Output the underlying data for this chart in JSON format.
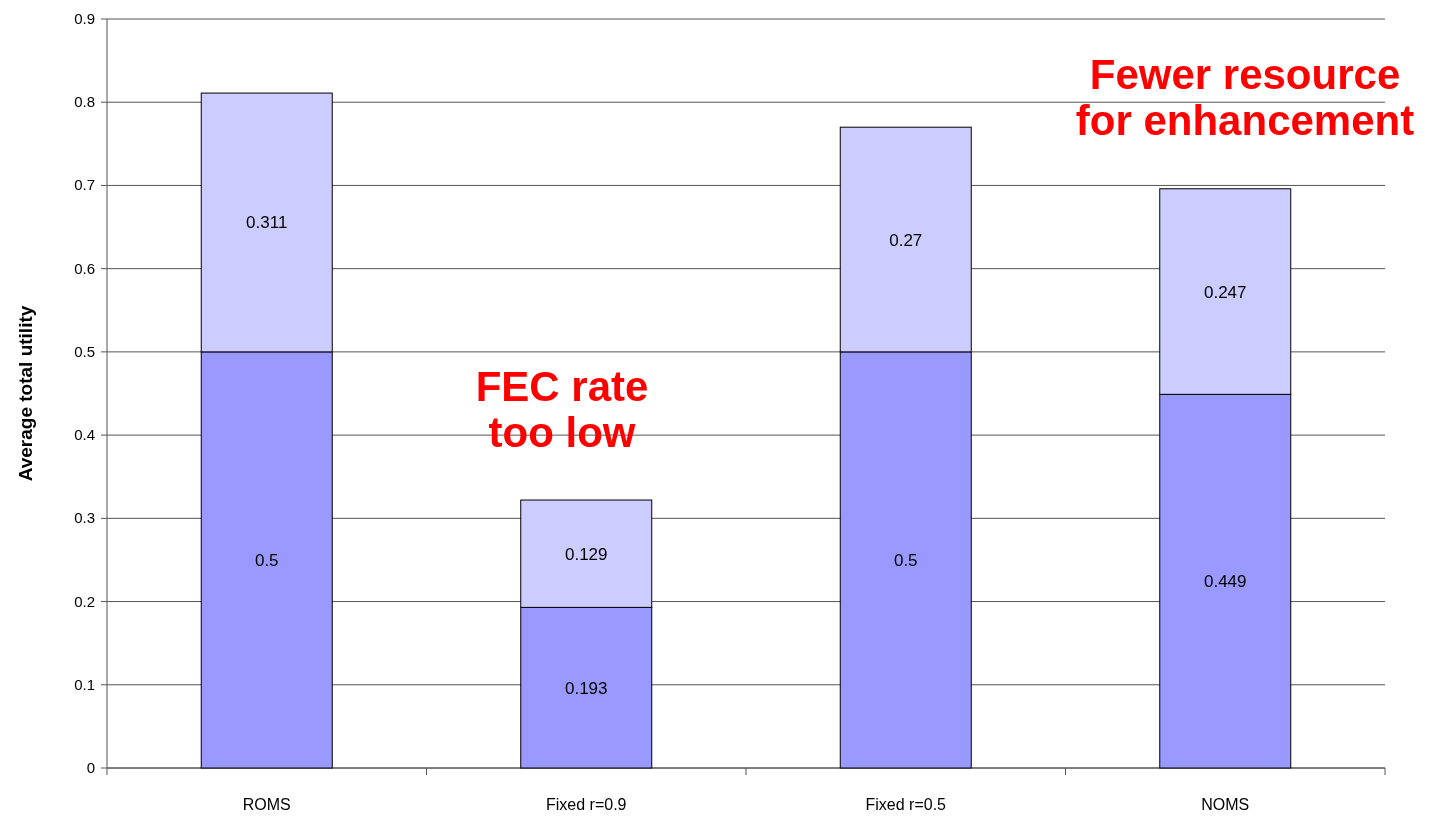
{
  "chart_data": {
    "type": "bar",
    "stacked": true,
    "ylabel": "Average total utility",
    "categories": [
      "ROMS",
      "Fixed r=0.9",
      "Fixed r=0.5",
      "NOMS"
    ],
    "series": [
      {
        "color": "#9999ff",
        "values": [
          0.5,
          0.193,
          0.5,
          0.449
        ]
      },
      {
        "color": "#ccccff",
        "values": [
          0.311,
          0.129,
          0.27,
          0.247
        ]
      }
    ],
    "ylim": [
      0,
      0.9
    ],
    "yticks": [
      0,
      0.1,
      0.2,
      0.3,
      0.4,
      0.5,
      0.6,
      0.7,
      0.8,
      0.9
    ],
    "grid": "y",
    "data_labels": true,
    "annotations": [
      "FEC rate\ntoo low",
      "Fewer resource\nfor enhancement"
    ]
  }
}
